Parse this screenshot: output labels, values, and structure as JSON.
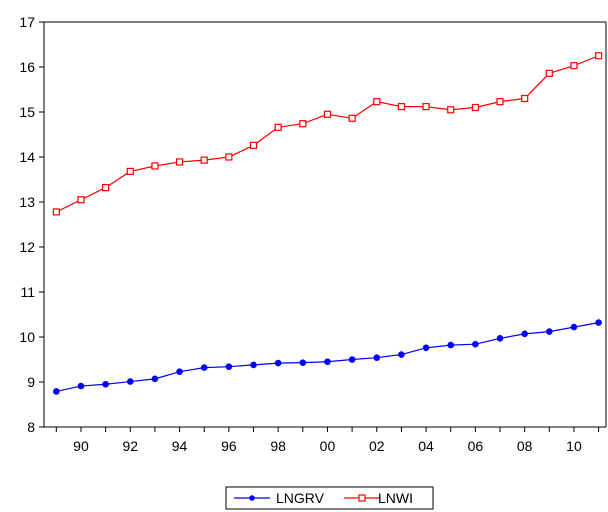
{
  "chart_data": {
    "type": "line",
    "x": [
      1989,
      1990,
      1991,
      1992,
      1993,
      1994,
      1995,
      1996,
      1997,
      1998,
      1999,
      2000,
      2001,
      2002,
      2003,
      2004,
      2005,
      2006,
      2007,
      2008,
      2009,
      2010,
      2011
    ],
    "x_tick_labels": [
      "90",
      "92",
      "94",
      "96",
      "98",
      "00",
      "02",
      "04",
      "06",
      "08",
      "10"
    ],
    "x_tick_years": [
      1990,
      1992,
      1994,
      1996,
      1998,
      2000,
      2002,
      2004,
      2006,
      2008,
      2010
    ],
    "xlim": [
      1988.5,
      2011.3
    ],
    "ylim": [
      8,
      17
    ],
    "y_ticks": [
      8,
      9,
      10,
      11,
      12,
      13,
      14,
      15,
      16,
      17
    ],
    "y_tick_labels": [
      "8",
      "9",
      "10",
      "11",
      "12",
      "13",
      "14",
      "15",
      "16",
      "17"
    ],
    "grid": false,
    "legend_position": "bottom-center",
    "series": [
      {
        "name": "LNGRV",
        "color": "#0000ff",
        "marker": "filled-circle",
        "values": [
          8.79,
          8.91,
          8.95,
          9.01,
          9.07,
          9.23,
          9.32,
          9.34,
          9.38,
          9.42,
          9.43,
          9.45,
          9.5,
          9.54,
          9.61,
          9.76,
          9.82,
          9.84,
          9.97,
          10.07,
          10.12,
          10.22,
          10.32
        ]
      },
      {
        "name": "LNWI",
        "color": "#ff0000",
        "marker": "hollow-square",
        "values": [
          12.78,
          13.05,
          13.32,
          13.68,
          13.8,
          13.89,
          13.93,
          14.0,
          14.26,
          14.66,
          14.74,
          14.95,
          14.86,
          15.23,
          15.12,
          15.12,
          15.05,
          15.1,
          15.23,
          15.3,
          15.86,
          16.03,
          16.25
        ]
      }
    ]
  }
}
